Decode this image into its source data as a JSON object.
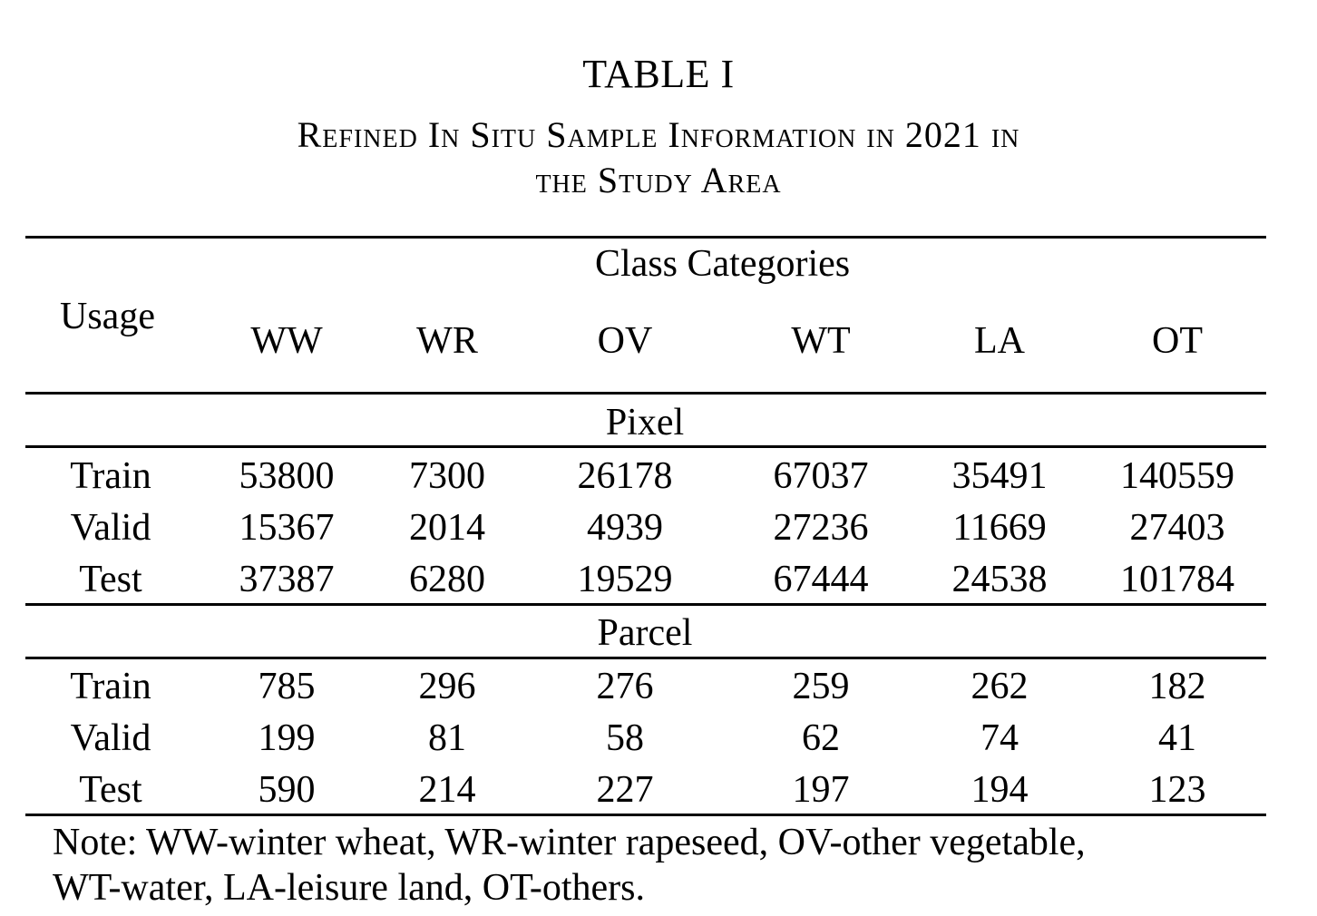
{
  "table": {
    "number": "TABLE I",
    "title_line1": "Refined In Situ Sample Information in 2021 in",
    "title_line2": "the Study Area",
    "row_header": "Usage",
    "column_group": "Class Categories",
    "columns": [
      "WW",
      "WR",
      "OV",
      "WT",
      "LA",
      "OT"
    ],
    "groups": [
      {
        "label": "Pixel",
        "rows": [
          {
            "usage": "Train",
            "values": [
              "53800",
              "7300",
              "26178",
              "67037",
              "35491",
              "140559"
            ]
          },
          {
            "usage": "Valid",
            "values": [
              "15367",
              "2014",
              "4939",
              "27236",
              "11669",
              "27403"
            ]
          },
          {
            "usage": "Test",
            "values": [
              "37387",
              "6280",
              "19529",
              "67444",
              "24538",
              "101784"
            ]
          }
        ]
      },
      {
        "label": "Parcel",
        "rows": [
          {
            "usage": "Train",
            "values": [
              "785",
              "296",
              "276",
              "259",
              "262",
              "182"
            ]
          },
          {
            "usage": "Valid",
            "values": [
              "199",
              "81",
              "58",
              "62",
              "74",
              "41"
            ]
          },
          {
            "usage": "Test",
            "values": [
              "590",
              "214",
              "227",
              "197",
              "194",
              "123"
            ]
          }
        ]
      }
    ],
    "note_line1": "Note: WW-winter wheat, WR-winter rapeseed, OV-other vegetable,",
    "note_line2": "WT-water, LA-leisure land, OT-others."
  }
}
